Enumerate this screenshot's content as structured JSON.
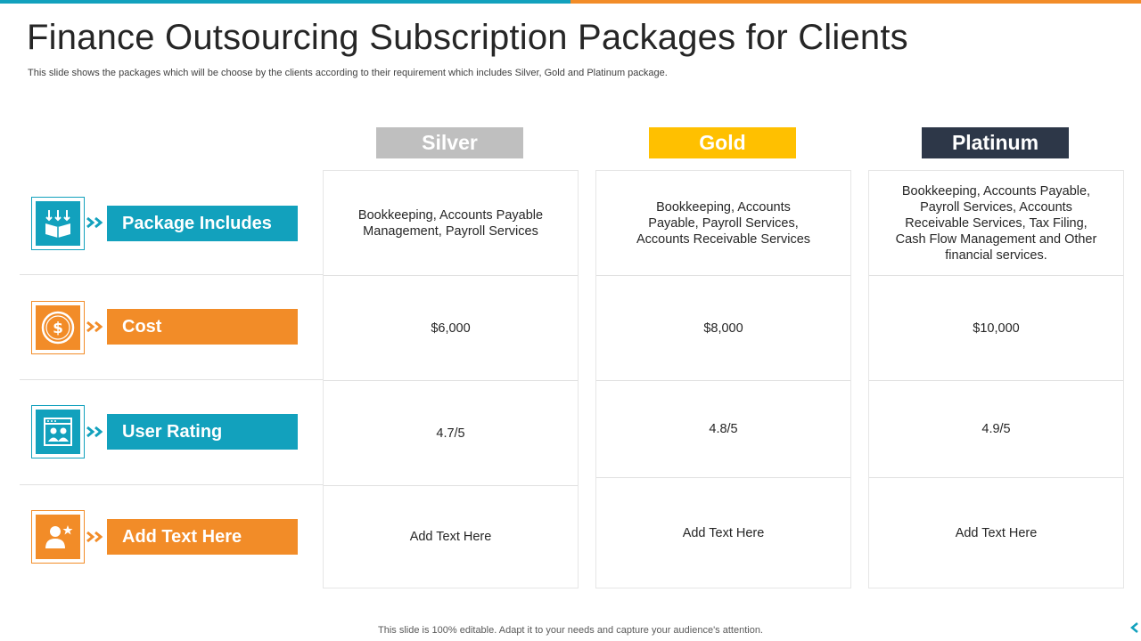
{
  "slide": {
    "title": "Finance Outsourcing Subscription Packages for Clients",
    "subtitle": "This slide shows the packages which will be choose by the clients according to their requirement which includes Silver, Gold and Platinum package.",
    "footer": "This slide is 100% editable. Adapt it to your needs and capture your audience's attention."
  },
  "colors": {
    "teal": "#12a1bd",
    "orange": "#f28c28",
    "silver": "#bfbfbf",
    "gold": "#ffc000",
    "platinum": "#2d3748"
  },
  "rows": [
    {
      "label": "Package Includes",
      "icon": "boxes-icon"
    },
    {
      "label": "Cost",
      "icon": "dollar-coin-icon"
    },
    {
      "label": "User Rating",
      "icon": "rating-users-icon"
    },
    {
      "label": "Add Text Here",
      "icon": "user-star-icon"
    }
  ],
  "packages": [
    {
      "name": "Silver",
      "includes": "Bookkeeping, Accounts Payable Management, Payroll Services",
      "cost": "$6,000",
      "rating": "4.7/5",
      "extra": "Add Text Here"
    },
    {
      "name": "Gold",
      "includes": "Bookkeeping, Accounts Payable, Payroll Services, Accounts Receivable Services",
      "cost": "$8,000",
      "rating": "4.8/5",
      "extra": "Add Text Here"
    },
    {
      "name": "Platinum",
      "includes": "Bookkeeping, Accounts Payable, Payroll Services, Accounts Receivable Services, Tax Filing, Cash Flow Management and Other financial services.",
      "cost": "$10,000",
      "rating": "4.9/5",
      "extra": "Add Text Here"
    }
  ]
}
